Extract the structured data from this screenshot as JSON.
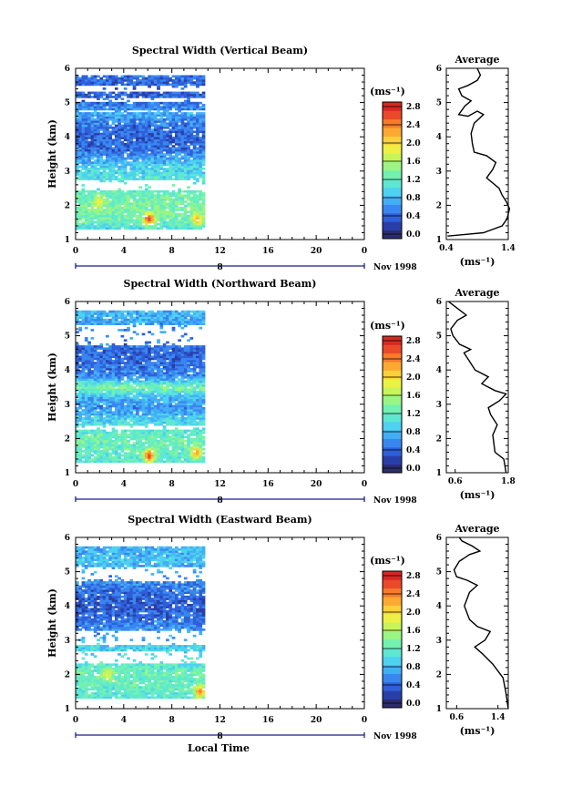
{
  "figure": {
    "x_axis_label": "Local Time",
    "date_label": "Nov 1998",
    "date_day": "8",
    "unit_label": "(ms⁻¹)",
    "average_title": "Average",
    "height_label": "Height (km)"
  },
  "chart_data": [
    {
      "type": "heatmap",
      "title": "Spectral Width (Vertical Beam)",
      "xlabel": "Local Time",
      "ylabel": "Height (km)",
      "xlim": [
        0,
        24
      ],
      "ylim": [
        1,
        6
      ],
      "x_ticks": [
        "0",
        "4",
        "8",
        "12",
        "16",
        "20",
        "0"
      ],
      "y_ticks": [
        "1",
        "2",
        "3",
        "4",
        "5",
        "6"
      ],
      "data_extent_hours": [
        0,
        10.6
      ],
      "data_extent_km": [
        1.3,
        5.8
      ],
      "colorbar": {
        "label": "(ms⁻¹)",
        "ticks": [
          "0.0",
          "0.4",
          "0.8",
          "1.2",
          "1.6",
          "2.0",
          "2.4",
          "2.8"
        ],
        "range": [
          0,
          3.0
        ]
      },
      "gaps_km": [
        [
          5.3,
          5.52
        ],
        [
          5.04,
          5.12
        ],
        [
          4.7,
          4.78
        ],
        [
          2.45,
          2.75
        ]
      ],
      "typical_by_height": [
        {
          "height_km": 1.3,
          "width_ms": 1.1
        },
        {
          "height_km": 1.6,
          "width_ms": 1.4
        },
        {
          "height_km": 2.0,
          "width_ms": 1.45
        },
        {
          "height_km": 2.3,
          "width_ms": 1.35
        },
        {
          "height_km": 2.8,
          "width_ms": 1.15
        },
        {
          "height_km": 3.2,
          "width_ms": 1.0
        },
        {
          "height_km": 3.6,
          "width_ms": 0.55
        },
        {
          "height_km": 4.0,
          "width_ms": 0.5
        },
        {
          "height_km": 4.4,
          "width_ms": 0.6
        },
        {
          "height_km": 4.7,
          "width_ms": 0.85
        },
        {
          "height_km": 5.0,
          "width_ms": 0.55
        },
        {
          "height_km": 5.5,
          "width_ms": 0.5
        },
        {
          "height_km": 5.8,
          "width_ms": 0.55
        }
      ],
      "hot_spots": [
        {
          "time_h": 6.0,
          "height_km": 1.6,
          "width_ms": 2.8
        },
        {
          "time_h": 10.0,
          "height_km": 1.6,
          "width_ms": 2.3
        },
        {
          "time_h": 1.8,
          "height_km": 2.1,
          "width_ms": 2.0
        }
      ],
      "average_profile": {
        "title": "Average",
        "xlabel": "(ms⁻¹)",
        "xlim": [
          0.4,
          1.4
        ],
        "x_ticks": [
          "0.4",
          "1.4"
        ],
        "ylim": [
          1,
          6
        ],
        "y_ticks": [
          "1",
          "2",
          "3",
          "4",
          "5",
          "6"
        ],
        "points": [
          [
            0.42,
            1.1
          ],
          [
            1.0,
            1.2
          ],
          [
            1.3,
            1.4
          ],
          [
            1.38,
            1.6
          ],
          [
            1.42,
            1.9
          ],
          [
            1.37,
            2.1
          ],
          [
            1.3,
            2.3
          ],
          [
            1.25,
            2.5
          ],
          [
            1.05,
            2.8
          ],
          [
            1.15,
            3.05
          ],
          [
            1.2,
            3.25
          ],
          [
            1.05,
            3.45
          ],
          [
            0.85,
            3.55
          ],
          [
            0.82,
            3.8
          ],
          [
            0.8,
            4.1
          ],
          [
            0.85,
            4.4
          ],
          [
            1.0,
            4.65
          ],
          [
            0.9,
            4.75
          ],
          [
            0.75,
            4.6
          ],
          [
            0.6,
            4.65
          ],
          [
            0.7,
            4.9
          ],
          [
            0.8,
            5.05
          ],
          [
            0.65,
            5.2
          ],
          [
            0.6,
            5.4
          ],
          [
            0.75,
            5.5
          ],
          [
            0.9,
            5.65
          ],
          [
            0.95,
            5.8
          ],
          [
            0.9,
            6.0
          ]
        ]
      }
    },
    {
      "type": "heatmap",
      "title": "Spectral Width (Northward Beam)",
      "xlabel": "Local Time",
      "ylabel": "Height (km)",
      "xlim": [
        0,
        24
      ],
      "ylim": [
        1,
        6
      ],
      "x_ticks": [
        "0",
        "4",
        "8",
        "12",
        "16",
        "20",
        "0"
      ],
      "y_ticks": [
        "1",
        "2",
        "3",
        "4",
        "5",
        "6"
      ],
      "data_extent_hours": [
        0,
        10.6
      ],
      "data_extent_km": [
        1.3,
        5.7
      ],
      "colorbar": {
        "label": "(ms⁻¹)",
        "ticks": [
          "0.0",
          "0.4",
          "0.8",
          "1.2",
          "1.6",
          "2.0",
          "2.4",
          "2.8"
        ],
        "range": [
          0,
          3.0
        ]
      },
      "gaps_km": [
        [
          4.7,
          5.3
        ],
        [
          2.25,
          2.4
        ]
      ],
      "typical_by_height": [
        {
          "height_km": 1.3,
          "width_ms": 1.2
        },
        {
          "height_km": 1.6,
          "width_ms": 1.3
        },
        {
          "height_km": 2.0,
          "width_ms": 1.35
        },
        {
          "height_km": 2.5,
          "width_ms": 1.1
        },
        {
          "height_km": 2.9,
          "width_ms": 0.7
        },
        {
          "height_km": 3.2,
          "width_ms": 0.9
        },
        {
          "height_km": 3.5,
          "width_ms": 1.45
        },
        {
          "height_km": 3.8,
          "width_ms": 0.7
        },
        {
          "height_km": 4.1,
          "width_ms": 0.55
        },
        {
          "height_km": 4.5,
          "width_ms": 0.5
        },
        {
          "height_km": 5.4,
          "width_ms": 0.8
        },
        {
          "height_km": 5.65,
          "width_ms": 0.9
        }
      ],
      "hot_spots": [
        {
          "time_h": 6.0,
          "height_km": 1.5,
          "width_ms": 2.8
        },
        {
          "time_h": 9.9,
          "height_km": 1.6,
          "width_ms": 2.4
        }
      ],
      "average_profile": {
        "title": "Average",
        "xlabel": "(ms⁻¹)",
        "xlim": [
          0.4,
          1.8
        ],
        "x_ticks": [
          "0.6",
          "1.8"
        ],
        "ylim": [
          1,
          6
        ],
        "y_ticks": [
          "1",
          "2",
          "3",
          "4",
          "5",
          "6"
        ],
        "points": [
          [
            1.75,
            1.0
          ],
          [
            1.7,
            1.4
          ],
          [
            1.5,
            1.6
          ],
          [
            1.45,
            2.1
          ],
          [
            1.55,
            2.4
          ],
          [
            1.4,
            2.7
          ],
          [
            1.35,
            2.9
          ],
          [
            1.6,
            3.1
          ],
          [
            1.75,
            3.3
          ],
          [
            1.5,
            3.4
          ],
          [
            1.2,
            3.6
          ],
          [
            1.35,
            3.8
          ],
          [
            1.05,
            4.0
          ],
          [
            0.9,
            4.3
          ],
          [
            0.8,
            4.5
          ],
          [
            0.95,
            4.6
          ],
          [
            0.7,
            4.75
          ],
          [
            0.55,
            5.0
          ],
          [
            0.5,
            5.2
          ],
          [
            0.65,
            5.45
          ],
          [
            0.85,
            5.6
          ],
          [
            0.55,
            5.9
          ],
          [
            0.45,
            6.0
          ]
        ]
      }
    },
    {
      "type": "heatmap",
      "title": "Spectral Width (Eastward Beam)",
      "xlabel": "Local Time",
      "ylabel": "Height (km)",
      "xlim": [
        0,
        24
      ],
      "ylim": [
        1,
        6
      ],
      "x_ticks": [
        "0",
        "4",
        "8",
        "12",
        "16",
        "20",
        "0"
      ],
      "y_ticks": [
        "1",
        "2",
        "3",
        "4",
        "5",
        "6"
      ],
      "data_extent_hours": [
        0,
        10.6
      ],
      "data_extent_km": [
        1.3,
        5.7
      ],
      "colorbar": {
        "label": "(ms⁻¹)",
        "ticks": [
          "0.0",
          "0.4",
          "0.8",
          "1.2",
          "1.6",
          "2.0",
          "2.4",
          "2.8"
        ],
        "range": [
          0,
          3.0
        ]
      },
      "gaps_km": [
        [
          4.7,
          5.15
        ],
        [
          2.85,
          3.3
        ],
        [
          2.35,
          2.7
        ]
      ],
      "typical_by_height": [
        {
          "height_km": 1.3,
          "width_ms": 1.2
        },
        {
          "height_km": 1.6,
          "width_ms": 1.3
        },
        {
          "height_km": 2.0,
          "width_ms": 1.35
        },
        {
          "height_km": 2.4,
          "width_ms": 1.2
        },
        {
          "height_km": 2.8,
          "width_ms": 1.0
        },
        {
          "height_km": 3.5,
          "width_ms": 0.6
        },
        {
          "height_km": 3.9,
          "width_ms": 0.45
        },
        {
          "height_km": 4.3,
          "width_ms": 0.5
        },
        {
          "height_km": 5.3,
          "width_ms": 0.95
        },
        {
          "height_km": 5.6,
          "width_ms": 0.9
        }
      ],
      "hot_spots": [
        {
          "time_h": 10.2,
          "height_km": 1.5,
          "width_ms": 2.5
        },
        {
          "time_h": 2.5,
          "height_km": 2.0,
          "width_ms": 1.9
        }
      ],
      "average_profile": {
        "title": "Average",
        "xlabel": "(ms⁻¹)",
        "xlim": [
          0.4,
          1.6
        ],
        "x_ticks": [
          "0.6",
          "1.4"
        ],
        "ylim": [
          1,
          6
        ],
        "y_ticks": [
          "1",
          "2",
          "3",
          "4",
          "5",
          "6"
        ],
        "points": [
          [
            1.6,
            1.0
          ],
          [
            1.55,
            1.5
          ],
          [
            1.5,
            1.9
          ],
          [
            1.3,
            2.3
          ],
          [
            1.1,
            2.6
          ],
          [
            0.95,
            2.8
          ],
          [
            1.15,
            3.0
          ],
          [
            1.25,
            3.25
          ],
          [
            1.0,
            3.4
          ],
          [
            0.85,
            3.6
          ],
          [
            0.75,
            4.0
          ],
          [
            0.85,
            4.4
          ],
          [
            1.0,
            4.6
          ],
          [
            0.8,
            4.75
          ],
          [
            0.6,
            4.85
          ],
          [
            0.55,
            5.05
          ],
          [
            0.65,
            5.3
          ],
          [
            0.85,
            5.5
          ],
          [
            1.05,
            5.6
          ],
          [
            0.9,
            5.75
          ],
          [
            0.7,
            5.9
          ],
          [
            0.65,
            6.0
          ]
        ]
      }
    }
  ]
}
